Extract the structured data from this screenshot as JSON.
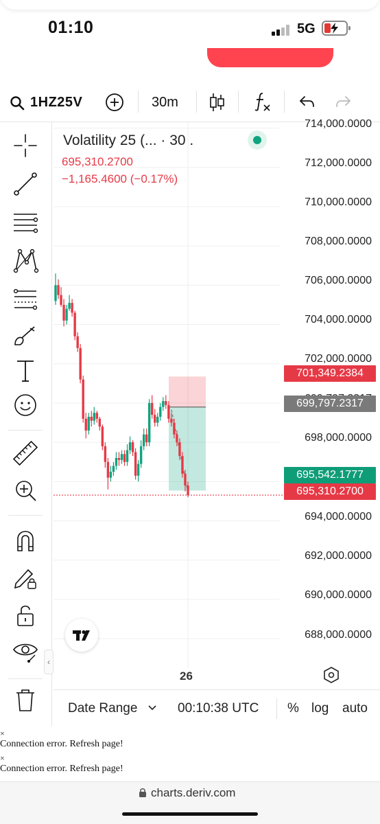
{
  "status_bar": {
    "time": "01:10",
    "network": "5G"
  },
  "toolbar": {
    "symbol": "1HZ25V",
    "interval": "30m"
  },
  "legend": {
    "title": "Volatility 25 (... · 30 .",
    "price": "695,310.2700",
    "change": "−1,165.4600 (−0.17%)"
  },
  "y_axis": {
    "labels": [
      "714,000.0000",
      "712,000.0000",
      "710,000.0000",
      "708,000.0000",
      "706,000.0000",
      "704,000.0000",
      "702,000.0000",
      "699,797.2317",
      "698,000.0000",
      "694,000.0000",
      "692,000.0000",
      "690,000.0000",
      "688,000.0000"
    ]
  },
  "price_tags": {
    "stop_loss": {
      "value": "701,349.2384",
      "color": "#e63946"
    },
    "entry": {
      "value": "699,797.2317",
      "color": "#7a7a7a"
    },
    "take_profit": {
      "value": "695,542.1777",
      "color": "#0f9d78"
    },
    "current": {
      "value": "695,310.2700",
      "color": "#e63946"
    }
  },
  "x_axis": {
    "date_label": "26"
  },
  "bottom_bar": {
    "date_range": "Date Range",
    "clock": "00:10:38 UTC",
    "percent": "%",
    "log": "log",
    "auto": "auto"
  },
  "errors": [
    {
      "x": "×",
      "message": "Connection error. Refresh page!"
    },
    {
      "x": "×",
      "message": "Connection error. Refresh page!"
    }
  ],
  "browser": {
    "url": "charts.deriv.com"
  },
  "sidebar_tools": [
    "crosshair-icon",
    "trend-line-icon",
    "parallel-channel-icon",
    "pattern-icon",
    "fibonacci-icon",
    "brush-icon",
    "text-icon",
    "emoji-icon",
    "ruler-icon",
    "zoom-in-icon",
    "magnet-icon",
    "pencil-lock-icon",
    "unlock-icon",
    "eye-icon",
    "trash-icon"
  ],
  "colors": {
    "bull": "#10a37f",
    "bear": "#e63946",
    "accent": "#ff444f"
  },
  "chart_data": {
    "type": "candlestick",
    "symbol": "Volatility 25",
    "interval": "30m",
    "x": [
      "",
      "",
      "",
      "",
      "",
      "",
      "",
      "",
      "",
      "",
      "",
      "",
      "",
      "",
      "",
      "",
      "",
      "",
      "",
      "",
      "",
      "",
      "",
      "",
      "",
      "",
      "",
      "",
      "",
      "",
      "",
      "",
      "",
      "",
      "",
      "",
      "",
      "",
      "",
      "",
      "",
      "",
      "",
      "",
      "",
      "",
      "",
      "",
      "26"
    ],
    "open": [
      705200,
      706000,
      705500,
      705000,
      704200,
      704800,
      705100,
      704600,
      703400,
      702800,
      701200,
      699200,
      698600,
      699300,
      699100,
      699500,
      699200,
      698800,
      697800,
      697000,
      696200,
      696500,
      696800,
      697200,
      697100,
      697400,
      697000,
      697600,
      698000,
      697500,
      696300,
      696900,
      697800,
      698400,
      698000,
      700000,
      699400,
      699000,
      699300,
      699800,
      700100,
      699900,
      699200,
      699000,
      698400,
      698000,
      697300,
      696400,
      695800
    ],
    "close": [
      706000,
      705500,
      705000,
      704200,
      704800,
      705100,
      704600,
      703400,
      702800,
      701200,
      699200,
      698600,
      699300,
      699100,
      699500,
      699200,
      698800,
      697800,
      697000,
      696200,
      696500,
      696800,
      697200,
      697100,
      697400,
      697000,
      697600,
      698000,
      697500,
      696300,
      696900,
      697800,
      698400,
      698000,
      700000,
      699400,
      699000,
      699300,
      699800,
      700100,
      699900,
      699200,
      699000,
      698400,
      698000,
      697300,
      696400,
      695800,
      695310
    ],
    "high": [
      706600,
      706300,
      705900,
      705300,
      705000,
      705500,
      705300,
      704700,
      703600,
      703000,
      701400,
      699500,
      699500,
      699600,
      699800,
      699600,
      699300,
      698900,
      698000,
      697200,
      696800,
      697000,
      697500,
      697500,
      697600,
      697600,
      697900,
      698300,
      698100,
      697700,
      697100,
      698100,
      698700,
      698700,
      700200,
      700400,
      699700,
      699500,
      700000,
      700300,
      700400,
      700100,
      699500,
      699200,
      698600,
      698200,
      697500,
      696600,
      696000
    ],
    "low": [
      705000,
      705300,
      704900,
      703900,
      704000,
      704700,
      704400,
      703200,
      702600,
      701000,
      699000,
      698200,
      698400,
      698800,
      698900,
      699000,
      698600,
      697600,
      696700,
      695600,
      696000,
      696300,
      696600,
      696800,
      696900,
      696800,
      696800,
      697400,
      697300,
      696100,
      696000,
      696700,
      697600,
      697800,
      697800,
      699200,
      698800,
      698800,
      699100,
      699600,
      699700,
      699000,
      698800,
      698200,
      697800,
      697100,
      696200,
      695500,
      695200
    ],
    "ylim": [
      686500,
      714300
    ],
    "positions": {
      "entry": 699797.2317,
      "stop_loss": 701349.2384,
      "take_profit": 695542.1777,
      "current": 695310.27
    }
  }
}
